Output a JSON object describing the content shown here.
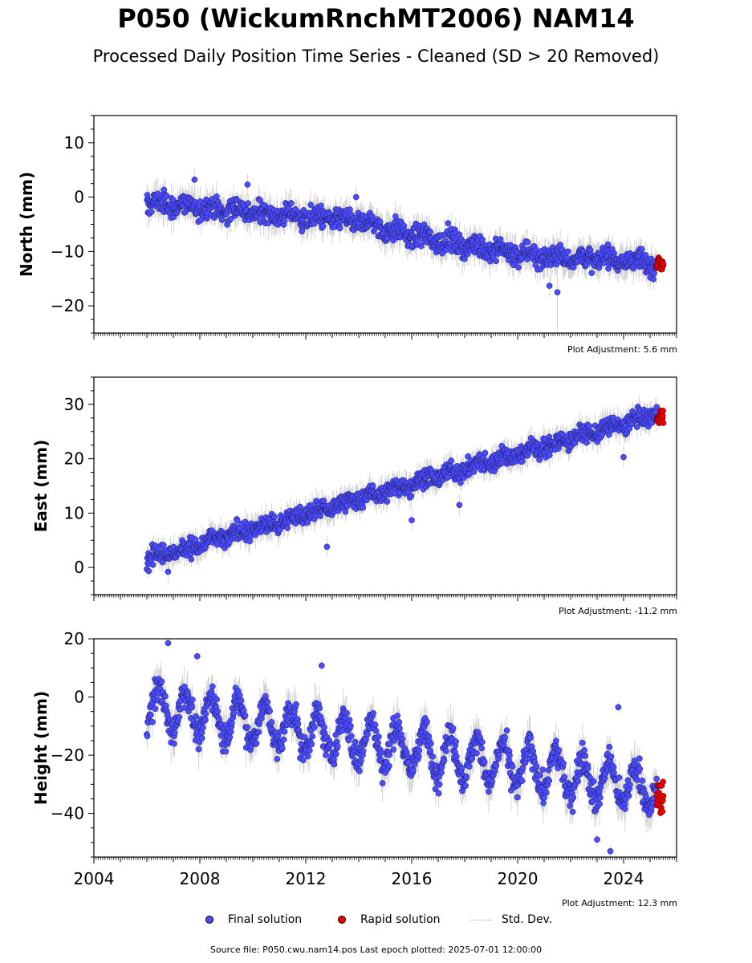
{
  "header": {
    "title": "P050 (WickumRnchMT2006) NAM14",
    "subtitle": "Processed Daily Position Time Series - Cleaned (SD > 20 Removed)"
  },
  "legend": {
    "final": "Final solution",
    "rapid": "Rapid solution",
    "std": "Std. Dev."
  },
  "colors": {
    "final": "#4b4bff",
    "rapid": "#ee0000",
    "std": "#bdbdbd"
  },
  "footer": {
    "source": "Source file: P050.cwu.nam14.pos  Last epoch plotted: 2025-07-01 12:00:00"
  },
  "chart_data": [
    {
      "type": "scatter",
      "ylabel": "North (mm)",
      "xlim": [
        2004,
        2026
      ],
      "ylim": [
        -25,
        15
      ],
      "yticks": [
        -20,
        -10,
        0,
        10
      ],
      "adjustment": "Plot Adjustment: 5.6 mm",
      "trend": {
        "x": [
          2006.0,
          2014.0,
          2016.0,
          2020.0,
          2025.5
        ],
        "y": [
          -1,
          -4.5,
          -7,
          -10.5,
          -12
        ]
      },
      "noise": 1.4,
      "seasonal": 0.6,
      "outliers": [
        [
          2007.8,
          3.2
        ],
        [
          2009.8,
          2.3
        ],
        [
          2013.9,
          0.0
        ],
        [
          2021.2,
          -16.3
        ],
        [
          2021.5,
          -17.5
        ]
      ],
      "rapid": {
        "x_start": 2025.25,
        "x_end": 2025.5,
        "y": [
          -13.5,
          -11
        ]
      },
      "std_extremes": [
        [
          2021.5,
          -24.6,
          -8
        ]
      ]
    },
    {
      "type": "scatter",
      "ylabel": "East (mm)",
      "xlim": [
        2004,
        2026
      ],
      "ylim": [
        -5,
        35
      ],
      "yticks": [
        0,
        10,
        20,
        30
      ],
      "adjustment": "Plot Adjustment: -11.2 mm",
      "trend": {
        "x": [
          2006.0,
          2025.5
        ],
        "y": [
          1.5,
          28.5
        ]
      },
      "noise": 1.2,
      "seasonal": 0.5,
      "outliers": [
        [
          2006.8,
          -0.8
        ],
        [
          2012.8,
          3.8
        ],
        [
          2017.8,
          11.5
        ],
        [
          2024.0,
          20.3
        ],
        [
          2016.0,
          8.7
        ]
      ],
      "rapid": {
        "x_start": 2025.25,
        "x_end": 2025.5,
        "y": [
          26.5,
          29
        ]
      },
      "std_extremes": []
    },
    {
      "type": "scatter",
      "ylabel": "Height (mm)",
      "xlim": [
        2004,
        2026
      ],
      "ylim": [
        -55,
        20
      ],
      "yticks": [
        -40,
        -20,
        0,
        20
      ],
      "xticks": [
        2004,
        2008,
        2012,
        2016,
        2020,
        2024
      ],
      "adjustment": "Plot Adjustment: 12.3 mm",
      "trend": {
        "x": [
          2006.0,
          2025.5
        ],
        "y": [
          -3,
          -32
        ]
      },
      "noise": 3.5,
      "seasonal": 7,
      "outliers": [
        [
          2006.8,
          18.5
        ],
        [
          2007.9,
          14.0
        ],
        [
          2012.6,
          10.8
        ],
        [
          2023.5,
          -53.0
        ],
        [
          2023.0,
          -49.0
        ],
        [
          2023.8,
          -3.5
        ]
      ],
      "rapid": {
        "x_start": 2025.25,
        "x_end": 2025.5,
        "y": [
          -40,
          -29
        ]
      },
      "std_extremes": []
    }
  ]
}
